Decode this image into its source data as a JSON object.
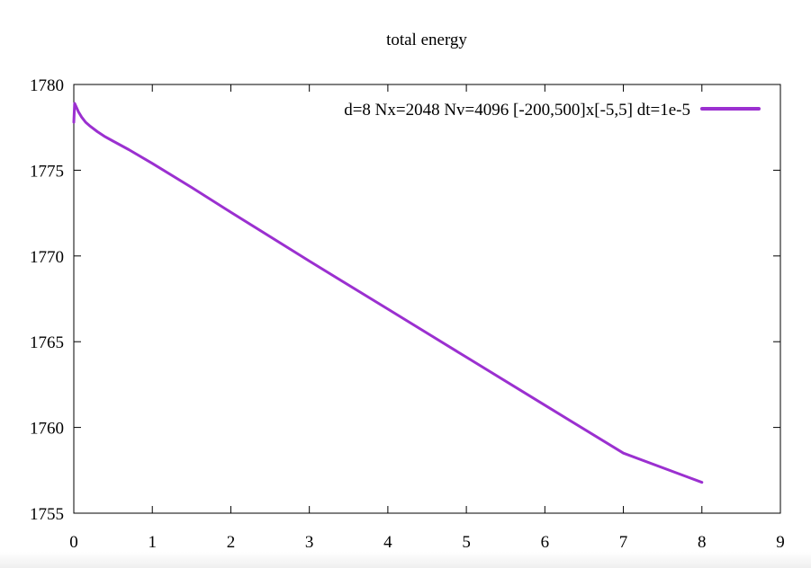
{
  "chart_data": {
    "type": "line",
    "title": "total energy",
    "xlabel": "",
    "ylabel": "",
    "xlim": [
      0,
      9
    ],
    "ylim": [
      1755,
      1780
    ],
    "x_ticks": [
      0,
      1,
      2,
      3,
      4,
      5,
      6,
      7,
      8,
      9
    ],
    "y_ticks": [
      1755,
      1760,
      1765,
      1770,
      1775,
      1780
    ],
    "grid": false,
    "legend_position": "top-right",
    "series": [
      {
        "name": "d=8 Nx=2048 Nv=4096 [-200,500]x[-5,5] dt=1e-5",
        "color": "#9b30d0",
        "x": [
          0,
          0.01,
          0.03,
          0.06,
          0.1,
          0.15,
          0.2,
          0.3,
          0.4,
          0.5,
          0.7,
          1.0,
          1.5,
          2.0,
          3.0,
          4.0,
          5.0,
          6.0,
          7.0,
          8.0
        ],
        "y": [
          1777.8,
          1778.9,
          1778.7,
          1778.4,
          1778.1,
          1777.8,
          1777.6,
          1777.25,
          1776.95,
          1776.7,
          1776.2,
          1775.4,
          1774.0,
          1772.55,
          1769.7,
          1766.9,
          1764.1,
          1761.3,
          1758.5,
          1756.8
        ]
      }
    ]
  }
}
